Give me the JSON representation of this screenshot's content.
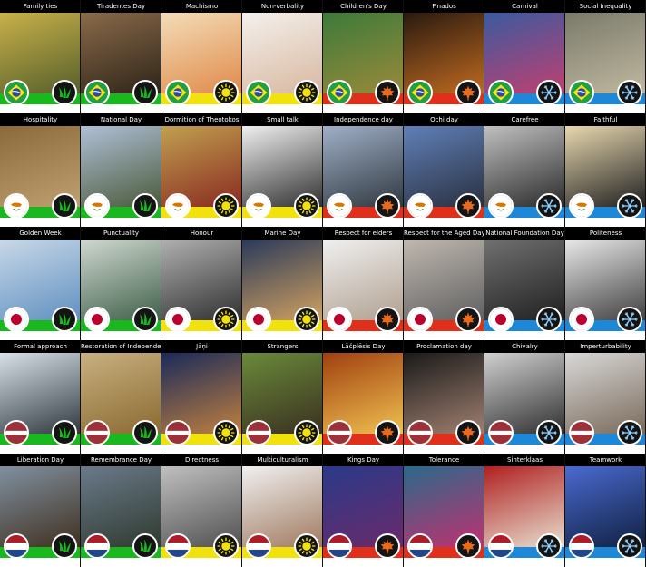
{
  "colors": {
    "spring": "#19b81e",
    "summer": "#f2e20c",
    "autumn": "#e0301c",
    "winter": "#1e88d8"
  },
  "rows": [
    {
      "country": "brazil",
      "flag_icon": "brazil-flag-icon",
      "cards": [
        {
          "title": "Family ties",
          "season": "spring",
          "photo": [
            "#c9b04a",
            "#55602a"
          ]
        },
        {
          "title": "Tiradentes Day",
          "season": "spring",
          "photo": [
            "#8a6a4a",
            "#2e2418"
          ]
        },
        {
          "title": "Machismo",
          "season": "summer",
          "photo": [
            "#f3ddb8",
            "#e08a4a"
          ]
        },
        {
          "title": "Non-verbality",
          "season": "summer",
          "photo": [
            "#f4f0ec",
            "#d8b8a0"
          ]
        },
        {
          "title": "Children's Day",
          "season": "autumn",
          "photo": [
            "#3c7a3a",
            "#9a8a3a"
          ]
        },
        {
          "title": "Finados",
          "season": "autumn",
          "photo": [
            "#2a1a10",
            "#c06a20"
          ]
        },
        {
          "title": "Carnival",
          "season": "winter",
          "photo": [
            "#3a5aa0",
            "#c04070"
          ]
        },
        {
          "title": "Social Inequality",
          "season": "winter",
          "photo": [
            "#7a7a6a",
            "#c0b8a0"
          ]
        }
      ]
    },
    {
      "country": "cyprus",
      "flag_icon": "cyprus-flag-icon",
      "cards": [
        {
          "title": "Hospitality",
          "season": "spring",
          "photo": [
            "#8a6a3a",
            "#c0a070"
          ]
        },
        {
          "title": "National Day",
          "season": "spring",
          "photo": [
            "#b0c0d8",
            "#4a5a3a"
          ]
        },
        {
          "title": "Dormition of Theotokos",
          "season": "summer",
          "photo": [
            "#c0a050",
            "#8a2a20"
          ]
        },
        {
          "title": "Small talk",
          "season": "summer",
          "photo": [
            "#f0f0f0",
            "#303030"
          ]
        },
        {
          "title": "Independence day",
          "season": "autumn",
          "photo": [
            "#a0b0c8",
            "#303840"
          ]
        },
        {
          "title": "Ochi day",
          "season": "autumn",
          "photo": [
            "#6080b8",
            "#2a3040"
          ]
        },
        {
          "title": "Carefree",
          "season": "winter",
          "photo": [
            "#c0c0c0",
            "#2a2a2a"
          ]
        },
        {
          "title": "Faithful",
          "season": "winter",
          "photo": [
            "#e8d8b0",
            "#202020"
          ]
        }
      ]
    },
    {
      "country": "japan",
      "flag_icon": "japan-flag-icon",
      "cards": [
        {
          "title": "Golden Week",
          "season": "spring",
          "photo": [
            "#c8d8e8",
            "#6090c0"
          ]
        },
        {
          "title": "Punctuality",
          "season": "spring",
          "photo": [
            "#d0d8d0",
            "#40604a"
          ]
        },
        {
          "title": "Honour",
          "season": "summer",
          "photo": [
            "#b0b0b0",
            "#303030"
          ]
        },
        {
          "title": "Marine Day",
          "season": "summer",
          "photo": [
            "#2a3a5a",
            "#d0a060"
          ]
        },
        {
          "title": "Respect for elders",
          "season": "autumn",
          "photo": [
            "#f0f0f0",
            "#b0a090"
          ]
        },
        {
          "title": "Respect for the Aged Day",
          "season": "autumn",
          "photo": [
            "#c0b8b0",
            "#606060"
          ]
        },
        {
          "title": "National Foundation Day",
          "season": "winter",
          "photo": [
            "#707070",
            "#202020"
          ]
        },
        {
          "title": "Politeness",
          "season": "winter",
          "photo": [
            "#e8e8e8",
            "#404040"
          ]
        }
      ]
    },
    {
      "country": "latvia",
      "flag_icon": "latvia-flag-icon",
      "cards": [
        {
          "title": "Formal approach",
          "season": "spring",
          "photo": [
            "#d8e0e8",
            "#303840"
          ]
        },
        {
          "title": "Restoration of Independence",
          "season": "spring",
          "photo": [
            "#c8b080",
            "#8a6a30"
          ]
        },
        {
          "title": "Jāņi",
          "season": "summer",
          "photo": [
            "#1a2a5a",
            "#c08040"
          ]
        },
        {
          "title": "Strangers",
          "season": "summer",
          "photo": [
            "#6a8a3a",
            "#3a3020"
          ]
        },
        {
          "title": "Lāčplēsis Day",
          "season": "autumn",
          "photo": [
            "#a04010",
            "#f0c050"
          ]
        },
        {
          "title": "Proclamation day",
          "season": "autumn",
          "photo": [
            "#1a1a1a",
            "#a08070"
          ]
        },
        {
          "title": "Chivalry",
          "season": "winter",
          "photo": [
            "#d0d0d0",
            "#303030"
          ]
        },
        {
          "title": "Imperturbability",
          "season": "winter",
          "photo": [
            "#d8d8d8",
            "#7a6a5a"
          ]
        }
      ]
    },
    {
      "country": "netherlands",
      "flag_icon": "netherlands-flag-icon",
      "cards": [
        {
          "title": "Liberation Day",
          "season": "spring",
          "photo": [
            "#8090a0",
            "#403020"
          ]
        },
        {
          "title": "Remembrance Day",
          "season": "spring",
          "photo": [
            "#6a7a8a",
            "#303a30"
          ]
        },
        {
          "title": "Directness",
          "season": "summer",
          "photo": [
            "#c0c0c0",
            "#505050"
          ]
        },
        {
          "title": "Multiculturalism",
          "season": "summer",
          "photo": [
            "#f0f0f0",
            "#a07a60"
          ]
        },
        {
          "title": "Kings Day",
          "season": "autumn",
          "photo": [
            "#2a3a8a",
            "#6a2a6a"
          ]
        },
        {
          "title": "Tolerance",
          "season": "autumn",
          "photo": [
            "#2a6a8a",
            "#c03070"
          ]
        },
        {
          "title": "Sinterklaas",
          "season": "winter",
          "photo": [
            "#b02020",
            "#e8e0d0"
          ]
        },
        {
          "title": "Teamwork",
          "season": "winter",
          "photo": [
            "#4a6ad0",
            "#102040"
          ]
        }
      ]
    }
  ]
}
